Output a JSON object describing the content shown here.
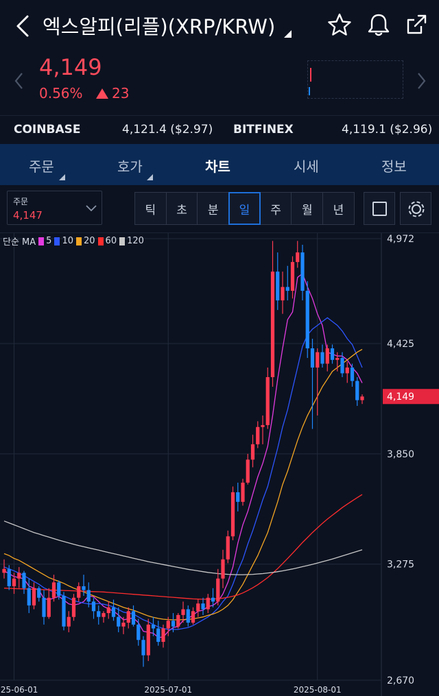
{
  "header": {
    "title": "엑스알피(리플)(XRP/KRW)",
    "icons": [
      "back-chevron-icon",
      "star-icon",
      "bell-icon",
      "share-icon"
    ]
  },
  "price": {
    "current": "4,149",
    "change_pct": "0.56%",
    "change_abs": "23",
    "color_up": "#ff4b5b"
  },
  "exchanges": [
    {
      "name": "COINBASE",
      "value": "4,121.4 ($2.97)"
    },
    {
      "name": "BITFINEX",
      "value": "4,119.1 ($2.96)"
    }
  ],
  "tabs": [
    {
      "label": "주문",
      "active": false
    },
    {
      "label": "호가",
      "active": false
    },
    {
      "label": "차트",
      "active": true
    },
    {
      "label": "시세",
      "active": false
    },
    {
      "label": "정보",
      "active": false
    }
  ],
  "toolbar": {
    "order_label": "주문",
    "order_value": "4,147",
    "periods": [
      "틱",
      "초",
      "분",
      "일",
      "주",
      "월",
      "년"
    ],
    "active_period": "일"
  },
  "legend": {
    "prefix": "단순 MA",
    "items": [
      {
        "label": "5",
        "color": "#e43be0"
      },
      {
        "label": "10",
        "color": "#2d56ff"
      },
      {
        "label": "20",
        "color": "#f5a623"
      },
      {
        "label": "60",
        "color": "#ff2d2d"
      },
      {
        "label": "120",
        "color": "#c8c8c8"
      }
    ]
  },
  "chart_data": {
    "type": "candlestick",
    "y_ticks": [
      "4,972",
      "4,425",
      "3,850",
      "3,275",
      "2,670"
    ],
    "x_ticks": [
      "2025-06-01",
      "2025-07-01",
      "2025-08-01"
    ],
    "current_label": "4,149",
    "colors": {
      "up": "#ff3b52",
      "down": "#1e88ff",
      "price_tag": "#e6263f"
    },
    "ylim": [
      2670,
      4972
    ],
    "candles": [
      [
        3230,
        3300,
        3200,
        3250
      ],
      [
        3250,
        3270,
        3140,
        3160
      ],
      [
        3160,
        3230,
        3120,
        3200
      ],
      [
        3200,
        3260,
        3150,
        3230
      ],
      [
        3230,
        3240,
        3120,
        3150
      ],
      [
        3150,
        3200,
        3020,
        3060
      ],
      [
        3060,
        3180,
        3040,
        3150
      ],
      [
        3150,
        3160,
        3080,
        3100
      ],
      [
        3100,
        3140,
        2960,
        3000
      ],
      [
        3000,
        3150,
        2990,
        3100
      ],
      [
        3100,
        3220,
        3080,
        3180
      ],
      [
        3180,
        3190,
        3090,
        3110
      ],
      [
        3110,
        3130,
        2930,
        2950
      ],
      [
        2950,
        3030,
        2920,
        3000
      ],
      [
        3000,
        3120,
        2980,
        3100
      ],
      [
        3100,
        3180,
        3080,
        3160
      ],
      [
        3160,
        3220,
        3110,
        3140
      ],
      [
        3140,
        3180,
        3050,
        3080
      ],
      [
        3080,
        3100,
        2990,
        3030
      ],
      [
        3030,
        3060,
        2960,
        3000
      ],
      [
        3000,
        3030,
        2970,
        3020
      ],
      [
        3020,
        3080,
        2990,
        3050
      ],
      [
        3050,
        3090,
        2980,
        3000
      ],
      [
        3000,
        3050,
        2920,
        2950
      ],
      [
        2950,
        3000,
        2910,
        2970
      ],
      [
        2970,
        3050,
        2940,
        3030
      ],
      [
        3030,
        3060,
        2950,
        2960
      ],
      [
        2960,
        2990,
        2850,
        2880
      ],
      [
        2880,
        2900,
        2740,
        2800
      ],
      [
        2800,
        2990,
        2770,
        2960
      ],
      [
        2960,
        3000,
        2900,
        2940
      ],
      [
        2940,
        2980,
        2850,
        2870
      ],
      [
        2870,
        2960,
        2840,
        2940
      ],
      [
        2940,
        3000,
        2900,
        2980
      ],
      [
        2980,
        3020,
        2920,
        2950
      ],
      [
        2950,
        3020,
        2940,
        3010
      ],
      [
        3010,
        3080,
        2970,
        3040
      ],
      [
        3040,
        3060,
        2950,
        2970
      ],
      [
        2970,
        3050,
        2960,
        3030
      ],
      [
        3030,
        3090,
        3000,
        3070
      ],
      [
        3070,
        3100,
        3010,
        3040
      ],
      [
        3040,
        3120,
        3020,
        3100
      ],
      [
        3100,
        3150,
        3050,
        3080
      ],
      [
        3080,
        3250,
        3060,
        3200
      ],
      [
        3200,
        3350,
        3150,
        3300
      ],
      [
        3300,
        3450,
        3280,
        3420
      ],
      [
        3420,
        3680,
        3400,
        3650
      ],
      [
        3650,
        3700,
        3550,
        3600
      ],
      [
        3600,
        3720,
        3580,
        3700
      ],
      [
        3700,
        3850,
        3690,
        3820
      ],
      [
        3820,
        3950,
        3780,
        3900
      ],
      [
        3900,
        4020,
        3880,
        3990
      ],
      [
        3990,
        4050,
        3900,
        4000
      ],
      [
        4000,
        4300,
        3980,
        4250
      ],
      [
        4250,
        4960,
        4200,
        4800
      ],
      [
        4800,
        4900,
        4600,
        4650
      ],
      [
        4650,
        4800,
        4580,
        4720
      ],
      [
        4720,
        4830,
        4650,
        4700
      ],
      [
        4700,
        4880,
        4660,
        4850
      ],
      [
        4850,
        4960,
        4820,
        4900
      ],
      [
        4900,
        4940,
        4650,
        4700
      ],
      [
        4700,
        4750,
        4350,
        4400
      ],
      [
        4400,
        4450,
        3980,
        4300
      ],
      [
        4300,
        4400,
        4050,
        4380
      ],
      [
        4380,
        4420,
        4300,
        4320
      ],
      [
        4320,
        4420,
        4280,
        4400
      ],
      [
        4400,
        4420,
        4320,
        4340
      ],
      [
        4340,
        4380,
        4280,
        4350
      ],
      [
        4350,
        4380,
        4250,
        4270
      ],
      [
        4270,
        4330,
        4220,
        4300
      ],
      [
        4300,
        4320,
        4200,
        4230
      ],
      [
        4230,
        4250,
        4100,
        4130
      ],
      [
        4130,
        4160,
        4110,
        4149
      ]
    ],
    "ma_series": [
      {
        "name": "5",
        "color": "#e43be0",
        "values": [
          3240,
          3225,
          3210,
          3205,
          3198,
          3160,
          3150,
          3140,
          3095,
          3090,
          3098,
          3108,
          3088,
          3068,
          3062,
          3068,
          3080,
          3110,
          3105,
          3080,
          3055,
          3042,
          3030,
          3010,
          2985,
          2990,
          2995,
          2970,
          2925,
          2920,
          2915,
          2893,
          2895,
          2925,
          2945,
          2950,
          2982,
          2992,
          3010,
          3030,
          3035,
          3055,
          3060,
          3080,
          3120,
          3180,
          3260,
          3385,
          3480,
          3550,
          3640,
          3730,
          3800,
          3890,
          4050,
          4240,
          4400,
          4550,
          4590,
          4770,
          4790,
          4720,
          4660,
          4580,
          4520,
          4380,
          4370,
          4360,
          4360,
          4340,
          4300,
          4270,
          4220
        ]
      },
      {
        "name": "10",
        "color": "#2d56ff",
        "values": [
          3260,
          3250,
          3240,
          3228,
          3215,
          3200,
          3185,
          3170,
          3152,
          3140,
          3130,
          3120,
          3110,
          3098,
          3085,
          3078,
          3072,
          3068,
          3068,
          3070,
          3066,
          3060,
          3052,
          3038,
          3025,
          3020,
          3015,
          3000,
          2985,
          2975,
          2960,
          2948,
          2940,
          2935,
          2935,
          2935,
          2940,
          2945,
          2955,
          2970,
          2985,
          3000,
          3020,
          3045,
          3080,
          3110,
          3170,
          3240,
          3300,
          3380,
          3450,
          3530,
          3610,
          3680,
          3780,
          3880,
          3990,
          4080,
          4190,
          4300,
          4410,
          4470,
          4500,
          4520,
          4540,
          4560,
          4540,
          4520,
          4490,
          4450,
          4420,
          4360,
          4300
        ]
      },
      {
        "name": "20",
        "color": "#f5a623",
        "values": [
          3330,
          3320,
          3305,
          3295,
          3280,
          3265,
          3250,
          3235,
          3220,
          3205,
          3195,
          3185,
          3175,
          3162,
          3150,
          3140,
          3130,
          3120,
          3110,
          3100,
          3090,
          3080,
          3070,
          3060,
          3050,
          3042,
          3035,
          3025,
          3015,
          3005,
          2998,
          2992,
          2988,
          2986,
          2985,
          2985,
          2986,
          2987,
          2990,
          2995,
          3000,
          3008,
          3015,
          3025,
          3040,
          3060,
          3090,
          3130,
          3170,
          3220,
          3270,
          3320,
          3380,
          3440,
          3520,
          3600,
          3690,
          3760,
          3840,
          3920,
          3990,
          4050,
          4100,
          4150,
          4200,
          4240,
          4280,
          4300,
          4320,
          4340,
          4360,
          4380,
          4395
        ]
      },
      {
        "name": "60",
        "color": "#ff2d2d",
        "values": [
          3150,
          3149,
          3148,
          3147,
          3146,
          3145,
          3144,
          3143,
          3142,
          3141,
          3140,
          3139,
          3138,
          3137,
          3136,
          3135,
          3134,
          3133,
          3132,
          3131,
          3130,
          3128,
          3126,
          3124,
          3122,
          3120,
          3118,
          3116,
          3114,
          3112,
          3110,
          3108,
          3106,
          3104,
          3102,
          3100,
          3098,
          3096,
          3094,
          3093,
          3092,
          3092,
          3093,
          3095,
          3098,
          3102,
          3108,
          3115,
          3125,
          3138,
          3152,
          3168,
          3186,
          3205,
          3228,
          3252,
          3278,
          3305,
          3332,
          3360,
          3388,
          3414,
          3440,
          3464,
          3488,
          3510,
          3530,
          3550,
          3570,
          3588,
          3605,
          3622,
          3638
        ]
      },
      {
        "name": "120",
        "color": "#c8c8c8",
        "values": [
          3500,
          3490,
          3480,
          3470,
          3460,
          3450,
          3440,
          3432,
          3424,
          3416,
          3408,
          3400,
          3393,
          3386,
          3379,
          3372,
          3366,
          3360,
          3354,
          3348,
          3342,
          3336,
          3330,
          3324,
          3318,
          3312,
          3306,
          3300,
          3294,
          3288,
          3283,
          3278,
          3273,
          3268,
          3263,
          3258,
          3253,
          3248,
          3244,
          3240,
          3236,
          3232,
          3229,
          3226,
          3224,
          3222,
          3221,
          3220,
          3220,
          3221,
          3222,
          3224,
          3226,
          3229,
          3232,
          3236,
          3240,
          3245,
          3250,
          3256,
          3262,
          3268,
          3274,
          3281,
          3288,
          3295,
          3302,
          3310,
          3318,
          3326,
          3334,
          3342,
          3350
        ]
      }
    ]
  }
}
